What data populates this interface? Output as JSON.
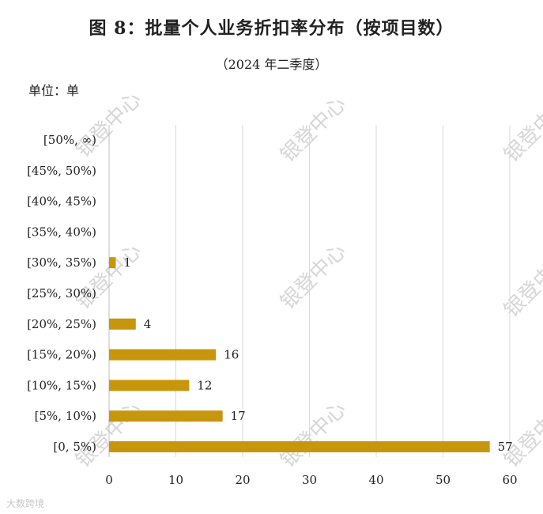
{
  "title": "图 8：批量个人业务折扣率分布（按项目数）",
  "subtitle": "（2024 年二季度）",
  "unit_label": "单位：单",
  "watermark": "银登中心",
  "credit": "大数跨境",
  "colors": {
    "bar": "#C8960C",
    "grid": "#d9d9d9",
    "text": "#222222"
  },
  "chart_data": {
    "type": "bar",
    "orientation": "horizontal",
    "title": "图 8：批量个人业务折扣率分布（按项目数）",
    "subtitle": "（2024 年二季度）",
    "categories": [
      "[0, 5%)",
      "[5%, 10%)",
      "[10%, 15%)",
      "[15%, 20%)",
      "[20%, 25%)",
      "[25%, 30%)",
      "[30%, 35%)",
      "[35%, 40%)",
      "[40%, 45%)",
      "[45%, 50%)",
      "[50%, ∞)"
    ],
    "values": [
      57,
      17,
      12,
      16,
      4,
      0,
      1,
      0,
      0,
      0,
      0
    ],
    "data_labels": [
      "57",
      "17",
      "12",
      "16",
      "4",
      "",
      "1",
      "",
      "",
      "",
      ""
    ],
    "xlim": [
      0,
      60
    ],
    "xticks": [
      0,
      10,
      20,
      30,
      40,
      50,
      60
    ],
    "grid": "vertical",
    "legend": "none",
    "ylabel": "单位：单"
  }
}
